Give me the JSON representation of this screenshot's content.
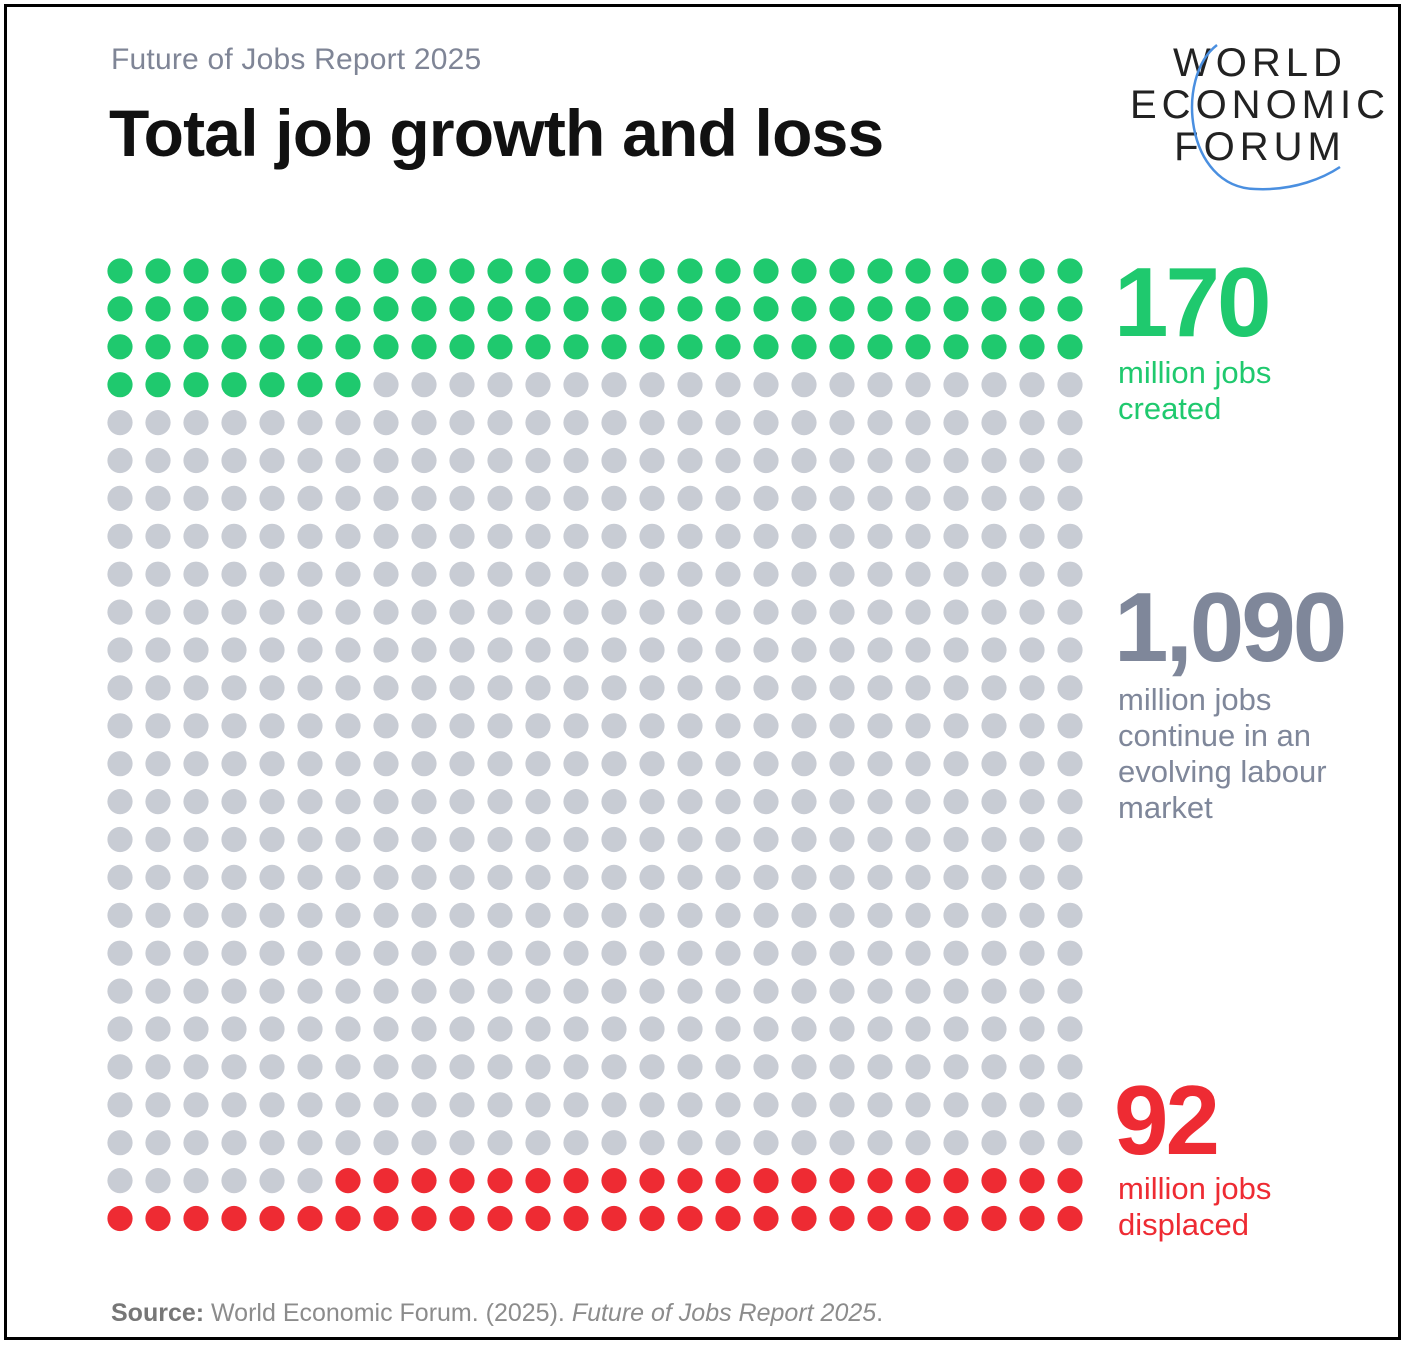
{
  "header": {
    "subtitle": "Future of Jobs Report 2025",
    "title": "Total job growth and loss"
  },
  "logo": {
    "lines": [
      "WORLD",
      "ECONOMIC",
      "FORUM"
    ],
    "arc_color": "#4a8fe0"
  },
  "stats": {
    "created": {
      "value": "170",
      "line1": "million jobs",
      "line2": "created"
    },
    "continue": {
      "value": "1,090",
      "line1": "million jobs",
      "line2": "continue in an",
      "line3": "evolving labour",
      "line4": "market"
    },
    "displaced": {
      "value": "92",
      "line1": "million jobs",
      "line2": "displaced"
    }
  },
  "source": {
    "label": "Source:",
    "text": " World Economic Forum. (2025). ",
    "italic": "Future of Jobs Report 2025",
    "end": "."
  },
  "colors": {
    "created": "#1fc96e",
    "continue": "#c8ccd4",
    "displaced": "#ee2b33"
  },
  "chart_data": {
    "type": "waffle",
    "columns": 26,
    "rows": 26,
    "segments": [
      {
        "label": "million jobs created",
        "value": 170,
        "dots": 85,
        "color": "#1fc96e",
        "fill_from": "top"
      },
      {
        "label": "million jobs continue in an evolving labour market",
        "value": 1090,
        "dots": 545,
        "color": "#c8ccd4"
      },
      {
        "label": "million jobs displaced",
        "value": 92,
        "dots": 46,
        "color": "#ee2b33",
        "fill_from": "bottom"
      }
    ]
  }
}
